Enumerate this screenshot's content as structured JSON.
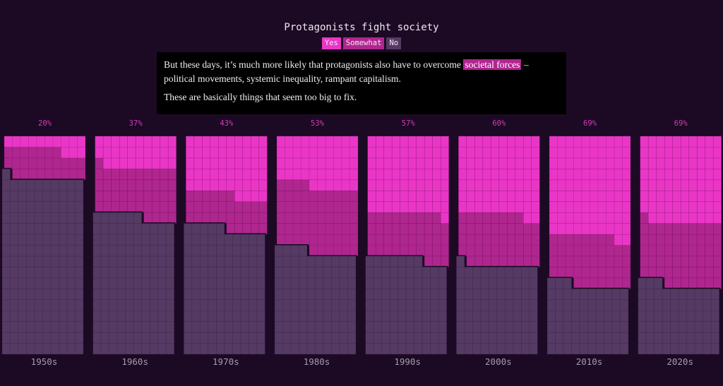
{
  "header": {
    "title": "Protagonists fight society",
    "legend": [
      {
        "label": "Yes",
        "color": "#ea36c6"
      },
      {
        "label": "Somewhat",
        "color": "#b0268f"
      },
      {
        "label": "No",
        "color": "#553a64"
      }
    ]
  },
  "tooltip": {
    "p1_before": "But these days, it’s much more likely that protagonists also have to overcome ",
    "p1_highlight": "societal forces",
    "p1_after": " – political movements, systemic inequality, rampant capitalism.",
    "p2": "These are basically things that seem too big to fix."
  },
  "chart_data": {
    "type": "waffle",
    "title": "Protagonists fight society",
    "categories": [
      "1950s",
      "1960s",
      "1970s",
      "1980s",
      "1990s",
      "2000s",
      "2010s",
      "2020s"
    ],
    "top_labels": [
      "20%",
      "37%",
      "43%",
      "53%",
      "57%",
      "60%",
      "69%",
      "69%"
    ],
    "series": [
      {
        "name": "Yes",
        "color": "#ea36c6",
        "values": [
          6.5,
          14.5,
          27,
          23,
          35.5,
          36,
          46,
          39.5
        ]
      },
      {
        "name": "Somewhat",
        "color": "#b0268f",
        "values": [
          13,
          22.5,
          15.5,
          30,
          21,
          23.5,
          22.5,
          29
        ]
      },
      {
        "name": "No",
        "color": "#553a64",
        "values": [
          80.5,
          63,
          57.5,
          47,
          43.5,
          40.5,
          31.5,
          31.5
        ]
      }
    ],
    "unit": "percent"
  }
}
